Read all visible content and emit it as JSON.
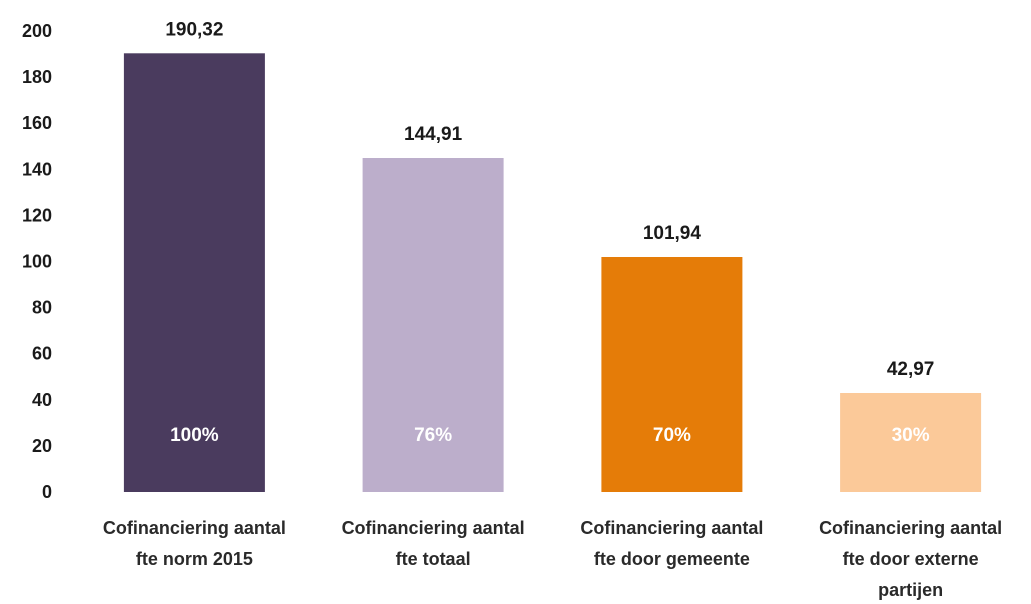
{
  "chart_data": {
    "type": "bar",
    "title": "",
    "xlabel": "",
    "ylabel": "",
    "ylim": [
      0,
      200
    ],
    "yticks": [
      "0",
      "20",
      "40",
      "60",
      "80",
      "100",
      "120",
      "140",
      "160",
      "180",
      "200"
    ],
    "grid": false,
    "legend": "none",
    "categories": [
      [
        "Cofinanciering aantal",
        "fte norm 2015"
      ],
      [
        "Cofinanciering aantal",
        "fte totaal"
      ],
      [
        "Cofinanciering aantal",
        "fte door gemeente"
      ],
      [
        "Cofinanciering aantal",
        "fte door externe",
        "partijen"
      ]
    ],
    "values": [
      190.32,
      144.91,
      101.94,
      42.97
    ],
    "value_labels": [
      "190,32",
      "144,91",
      "101,94",
      "42,97"
    ],
    "percent_labels": [
      "100%",
      "76%",
      "70%",
      "30%"
    ],
    "colors": [
      "#4a3b5e",
      "#bcaecb",
      "#e57c08",
      "#fbc999"
    ]
  }
}
